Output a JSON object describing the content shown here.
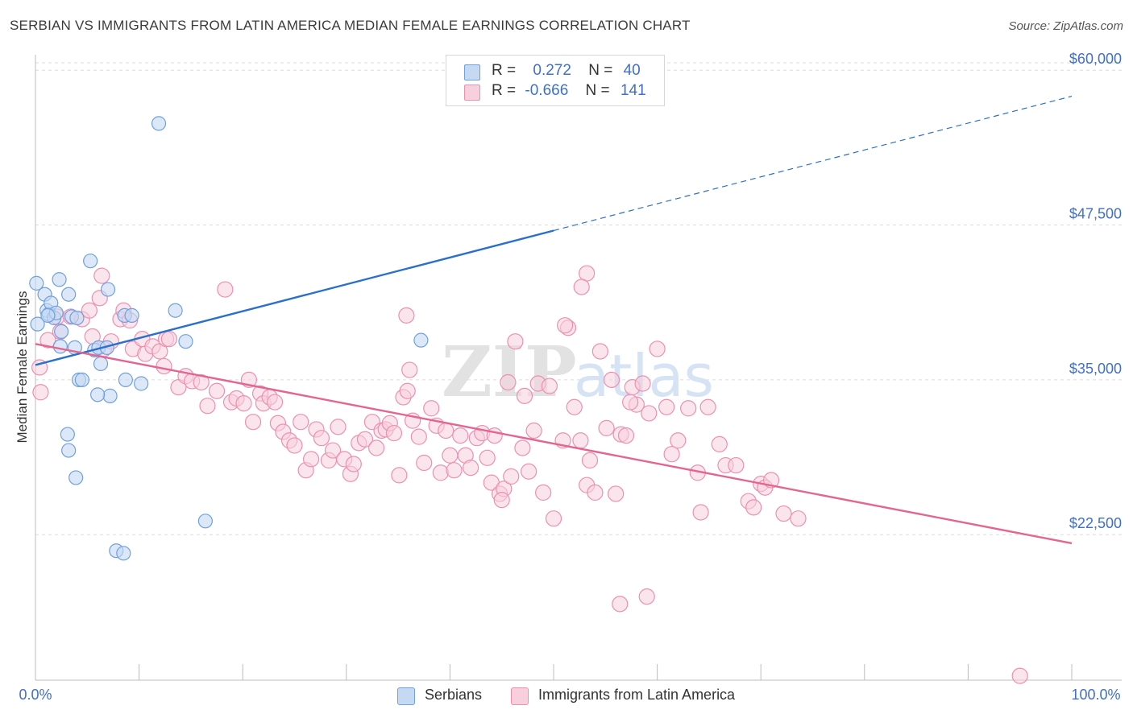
{
  "title": "SERBIAN VS IMMIGRANTS FROM LATIN AMERICA MEDIAN FEMALE EARNINGS CORRELATION CHART",
  "source": "Source: ZipAtlas.com",
  "watermark": {
    "zip": "ZIP",
    "atlas": "atlas"
  },
  "legend": {
    "r_label": "R =",
    "n_label": "N =",
    "serbians": {
      "r": "0.272",
      "n": "40"
    },
    "latin": {
      "r": "-0.666",
      "n": "141"
    }
  },
  "colors": {
    "serbians": "#6fa0e0",
    "serbians_fill": "#c5d9f3",
    "serbians_line": "#2a6fc9",
    "latin": "#ee8fb0",
    "latin_fill": "#f8cfdd",
    "latin_line": "#e56591",
    "tick_label": "#3f6fcc"
  },
  "chart_data": {
    "type": "scatter",
    "title": "SERBIAN VS IMMIGRANTS FROM LATIN AMERICA MEDIAN FEMALE EARNINGS CORRELATION CHART",
    "xlabel": "",
    "ylabel": "Median Female Earnings",
    "xlim": [
      0,
      100
    ],
    "ylim": [
      10750,
      61250
    ],
    "x_tick_labels": [
      "0.0%",
      "100.0%"
    ],
    "y_ticks": [
      22500,
      35000,
      47500,
      60000
    ],
    "y_tick_labels": [
      "$22,500",
      "$35,000",
      "$47,500",
      "$60,000"
    ],
    "grid": true,
    "legend_position": "top-center",
    "series": [
      {
        "name": "Serbians",
        "points": [
          [
            0.1,
            42800
          ],
          [
            0.2,
            39500
          ],
          [
            0.9,
            41900
          ],
          [
            1.1,
            40600
          ],
          [
            1.3,
            40300
          ],
          [
            1.5,
            41200
          ],
          [
            1.8,
            40000
          ],
          [
            2.0,
            40400
          ],
          [
            2.3,
            43100
          ],
          [
            2.4,
            37700
          ],
          [
            3.2,
            41900
          ],
          [
            3.5,
            40100
          ],
          [
            3.8,
            37600
          ],
          [
            4.2,
            35000
          ],
          [
            4.5,
            35000
          ],
          [
            5.3,
            44600
          ],
          [
            5.7,
            37400
          ],
          [
            6.1,
            37600
          ],
          [
            6.3,
            36300
          ],
          [
            6.9,
            37600
          ],
          [
            7.0,
            42300
          ],
          [
            7.2,
            33700
          ],
          [
            8.6,
            40200
          ],
          [
            9.3,
            40200
          ],
          [
            8.7,
            35000
          ],
          [
            10.2,
            34700
          ],
          [
            11.9,
            55700
          ],
          [
            13.5,
            40600
          ],
          [
            14.5,
            38100
          ],
          [
            3.1,
            30600
          ],
          [
            3.2,
            29300
          ],
          [
            3.9,
            27100
          ],
          [
            7.8,
            21200
          ],
          [
            8.5,
            21000
          ],
          [
            16.4,
            23600
          ],
          [
            37.2,
            38200
          ],
          [
            6.0,
            33800
          ],
          [
            1.2,
            40200
          ],
          [
            2.5,
            38900
          ],
          [
            4.0,
            40000
          ]
        ]
      },
      {
        "name": "Immigrants from Latin America",
        "points": [
          [
            0.4,
            36000
          ],
          [
            0.5,
            34000
          ],
          [
            1.2,
            38200
          ],
          [
            2.1,
            40100
          ],
          [
            2.4,
            38900
          ],
          [
            3.4,
            40100
          ],
          [
            4.5,
            39900
          ],
          [
            5.2,
            40600
          ],
          [
            5.5,
            38500
          ],
          [
            6.2,
            41600
          ],
          [
            6.4,
            43400
          ],
          [
            6.6,
            37500
          ],
          [
            7.3,
            38100
          ],
          [
            8.2,
            39900
          ],
          [
            8.5,
            40600
          ],
          [
            9.1,
            39800
          ],
          [
            9.4,
            37500
          ],
          [
            10.3,
            38300
          ],
          [
            10.6,
            37100
          ],
          [
            11.3,
            37700
          ],
          [
            12.0,
            37300
          ],
          [
            12.4,
            36100
          ],
          [
            12.6,
            38300
          ],
          [
            12.9,
            38300
          ],
          [
            13.8,
            34400
          ],
          [
            14.5,
            35300
          ],
          [
            15.1,
            34900
          ],
          [
            16.0,
            34800
          ],
          [
            16.6,
            32900
          ],
          [
            17.5,
            34100
          ],
          [
            18.3,
            42300
          ],
          [
            18.9,
            33200
          ],
          [
            19.4,
            33500
          ],
          [
            20.1,
            33100
          ],
          [
            20.6,
            35000
          ],
          [
            21.0,
            31600
          ],
          [
            21.7,
            33900
          ],
          [
            22.0,
            33100
          ],
          [
            22.6,
            33600
          ],
          [
            23.1,
            33200
          ],
          [
            23.4,
            31500
          ],
          [
            23.9,
            30800
          ],
          [
            24.5,
            30100
          ],
          [
            25.0,
            29700
          ],
          [
            25.6,
            31600
          ],
          [
            26.1,
            27700
          ],
          [
            26.6,
            28600
          ],
          [
            27.1,
            31000
          ],
          [
            27.6,
            30300
          ],
          [
            28.3,
            28500
          ],
          [
            28.7,
            29300
          ],
          [
            29.2,
            31200
          ],
          [
            29.8,
            28600
          ],
          [
            30.4,
            27400
          ],
          [
            30.7,
            28200
          ],
          [
            31.2,
            29900
          ],
          [
            31.8,
            30200
          ],
          [
            32.5,
            31600
          ],
          [
            32.9,
            29500
          ],
          [
            33.4,
            30900
          ],
          [
            33.8,
            31000
          ],
          [
            34.2,
            31500
          ],
          [
            34.6,
            30700
          ],
          [
            35.1,
            27300
          ],
          [
            35.5,
            33600
          ],
          [
            35.9,
            34100
          ],
          [
            36.4,
            31700
          ],
          [
            37.0,
            30400
          ],
          [
            37.5,
            28300
          ],
          [
            38.2,
            32700
          ],
          [
            38.7,
            31300
          ],
          [
            39.1,
            27500
          ],
          [
            39.6,
            30900
          ],
          [
            40.0,
            28900
          ],
          [
            40.4,
            27700
          ],
          [
            41.0,
            30500
          ],
          [
            41.5,
            28900
          ],
          [
            42.0,
            27900
          ],
          [
            42.6,
            30300
          ],
          [
            43.1,
            30700
          ],
          [
            43.6,
            28700
          ],
          [
            44.0,
            26700
          ],
          [
            44.3,
            30500
          ],
          [
            44.8,
            25800
          ],
          [
            45.2,
            26200
          ],
          [
            45.6,
            34800
          ],
          [
            45.9,
            27200
          ],
          [
            46.3,
            38100
          ],
          [
            47.0,
            29500
          ],
          [
            47.6,
            27600
          ],
          [
            48.1,
            30900
          ],
          [
            48.5,
            34700
          ],
          [
            49.0,
            25900
          ],
          [
            49.6,
            34500
          ],
          [
            50.0,
            23800
          ],
          [
            50.9,
            30100
          ],
          [
            51.4,
            39200
          ],
          [
            52.0,
            32800
          ],
          [
            52.6,
            30100
          ],
          [
            53.2,
            26500
          ],
          [
            53.5,
            28500
          ],
          [
            54.0,
            25900
          ],
          [
            54.5,
            37300
          ],
          [
            55.1,
            31100
          ],
          [
            55.6,
            35000
          ],
          [
            56.0,
            25800
          ],
          [
            56.5,
            30600
          ],
          [
            57.0,
            30500
          ],
          [
            57.6,
            34400
          ],
          [
            58.0,
            33000
          ],
          [
            58.6,
            34700
          ],
          [
            59.2,
            32300
          ],
          [
            60.0,
            37500
          ],
          [
            60.9,
            32800
          ],
          [
            61.4,
            29000
          ],
          [
            62.0,
            30100
          ],
          [
            63.0,
            32700
          ],
          [
            63.9,
            27500
          ],
          [
            64.2,
            24300
          ],
          [
            64.9,
            32800
          ],
          [
            66.0,
            29800
          ],
          [
            66.6,
            28100
          ],
          [
            67.6,
            28100
          ],
          [
            68.8,
            25200
          ],
          [
            69.3,
            24700
          ],
          [
            70.0,
            26600
          ],
          [
            70.4,
            26300
          ],
          [
            71.0,
            26900
          ],
          [
            72.2,
            24200
          ],
          [
            73.6,
            23800
          ],
          [
            56.4,
            16900
          ],
          [
            59.0,
            17500
          ],
          [
            95.0,
            11100
          ],
          [
            53.2,
            43600
          ],
          [
            52.7,
            42500
          ],
          [
            35.8,
            40200
          ],
          [
            36.1,
            35800
          ],
          [
            47.2,
            33700
          ],
          [
            51.1,
            39400
          ],
          [
            57.4,
            33200
          ],
          [
            45.0,
            25300
          ]
        ]
      }
    ],
    "trend_lines": [
      {
        "series": "Serbians",
        "from": [
          0,
          36200
        ],
        "to": [
          100,
          57900
        ],
        "solid_until": 50
      },
      {
        "series": "Immigrants from Latin America",
        "from": [
          0,
          37900
        ],
        "to": [
          100,
          21800
        ]
      }
    ]
  }
}
